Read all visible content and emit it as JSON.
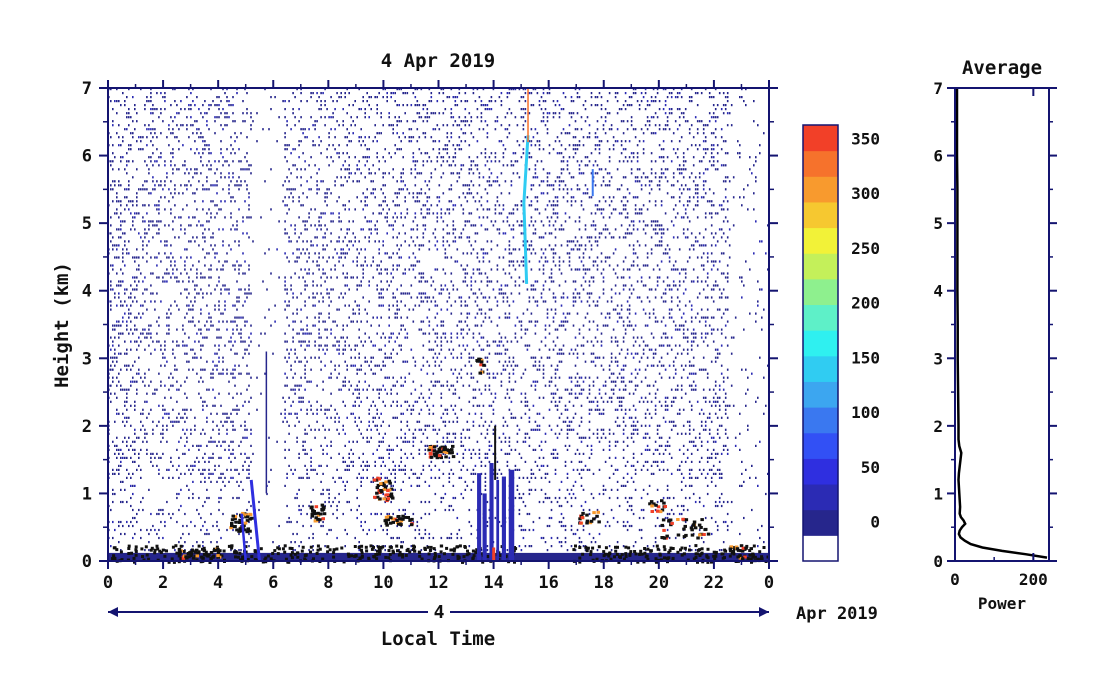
{
  "colors": {
    "axis": "#141470",
    "text": "#111111",
    "background": "#ffffff",
    "curve": "#000000",
    "colorbar": [
      "#ffffff",
      "#26268c",
      "#2b2bb4",
      "#2f2fe0",
      "#3250f5",
      "#3a78f0",
      "#3ca6f0",
      "#30ccf2",
      "#2ff0f0",
      "#5ef0c8",
      "#8ef08e",
      "#c4f05a",
      "#f2f238",
      "#f6c830",
      "#f89a2e",
      "#f6722c",
      "#f24028"
    ]
  },
  "chart_data": [
    {
      "type": "heatmap",
      "title": "4 Apr 2019",
      "xlabel": "Local Time",
      "ylabel": "Height (km)",
      "x_ticks": [
        "0",
        "2",
        "4",
        "6",
        "8",
        "10",
        "12",
        "14",
        "16",
        "18",
        "20",
        "22",
        "0"
      ],
      "y_ticks": [
        "0",
        "1",
        "2",
        "3",
        "4",
        "5",
        "6",
        "7"
      ],
      "x_range_hours": [
        0,
        24
      ],
      "y_range_km": [
        0,
        7
      ],
      "date_axis": {
        "day_label": "4",
        "month_label": "Apr 2019"
      },
      "colorbar": {
        "tick_labels": [
          "0",
          "50",
          "100",
          "150",
          "200",
          "250",
          "300",
          "350"
        ],
        "tick_values": [
          0,
          50,
          100,
          150,
          200,
          250,
          300,
          350
        ],
        "range": [
          0,
          375
        ]
      },
      "features": [
        {
          "desc": "strong low-level layer",
          "hours": [
            0,
            24
          ],
          "height_km": [
            0,
            0.15
          ]
        },
        {
          "desc": "dark echoes",
          "hours": [
            4.5,
            5.2
          ],
          "height_km": [
            0.5,
            0.7
          ]
        },
        {
          "desc": "dark echoes",
          "hours": [
            9.5,
            11.0
          ],
          "height_km": [
            0.6,
            1.2
          ]
        },
        {
          "desc": "dark echo cluster",
          "hours": [
            11.5,
            12.5
          ],
          "height_km": [
            1.6,
            1.7
          ]
        },
        {
          "desc": "rain shaft",
          "hours": [
            13.3,
            14.8
          ],
          "height_km": [
            0,
            1.5
          ]
        },
        {
          "desc": "cyan streak",
          "hours": [
            15.0,
            15.3
          ],
          "height_km": [
            4.0,
            6.3
          ]
        },
        {
          "desc": "dark echoes",
          "hours": [
            19.5,
            22.0
          ],
          "height_km": [
            0.4,
            0.9
          ]
        }
      ]
    },
    {
      "type": "line",
      "title": "Average",
      "xlabel": "Power",
      "ylabel": "",
      "x_ticks": [
        "0",
        "200"
      ],
      "y_ticks": [
        "0",
        "1",
        "2",
        "3",
        "4",
        "5",
        "6",
        "7"
      ],
      "xlim": [
        0,
        240
      ],
      "ylim": [
        0,
        7
      ],
      "series": [
        {
          "x": [
            235,
            180,
            120,
            70,
            40,
            25,
            14,
            10,
            12,
            18,
            26,
            22,
            15,
            12,
            13,
            12,
            11,
            10,
            9,
            10,
            12,
            14,
            16,
            11,
            9,
            9,
            8,
            7,
            7,
            6,
            6,
            6,
            6,
            5,
            5,
            5,
            5,
            5,
            5,
            5,
            5,
            5,
            5,
            5,
            5
          ],
          "y": [
            0.05,
            0.1,
            0.15,
            0.2,
            0.25,
            0.3,
            0.35,
            0.4,
            0.45,
            0.5,
            0.55,
            0.6,
            0.65,
            0.7,
            0.8,
            0.9,
            1.0,
            1.1,
            1.2,
            1.3,
            1.4,
            1.5,
            1.6,
            1.7,
            1.8,
            2.0,
            2.5,
            3.0,
            3.5,
            4.0,
            4.5,
            5.0,
            5.5,
            6.0,
            6.2,
            6.4,
            6.5,
            6.6,
            6.7,
            6.8,
            6.85,
            6.9,
            6.95,
            7.0,
            7.0
          ]
        }
      ]
    }
  ]
}
